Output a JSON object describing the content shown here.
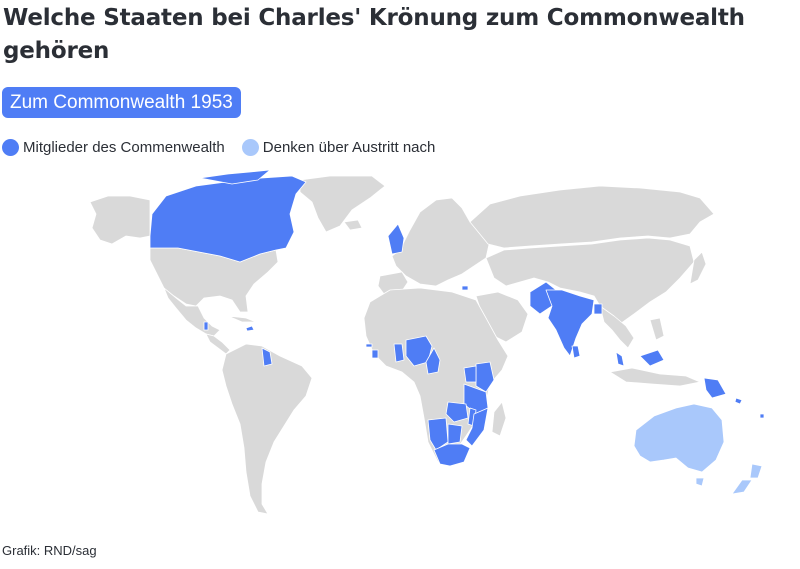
{
  "title": "Welche Staaten bei Charles' Krönung zum Commonwealth gehören",
  "tab": {
    "label": "Zum Commonwealth 1953"
  },
  "colors": {
    "member": "#4f7df5",
    "considering_exit": "#a9c8fb",
    "other": "#d9d9d9",
    "border": "#ffffff"
  },
  "legend": [
    {
      "label": "Mitglieder des Commenwealth",
      "color": "#4f7df5"
    },
    {
      "label": "Denken über Austritt nach",
      "color": "#a9c8fb"
    }
  ],
  "map": {
    "projection": "world",
    "members": [
      "Canada",
      "United Kingdom",
      "Jamaica",
      "Belize",
      "Guyana",
      "The Gambia",
      "Sierra Leone",
      "Ghana",
      "Nigeria",
      "Cameroon",
      "Uganda",
      "Kenya",
      "Tanzania",
      "Rwanda",
      "Malawi",
      "Zambia",
      "Mozambique",
      "Botswana",
      "Namibia",
      "South Africa",
      "Eswatini",
      "Lesotho",
      "Cyprus",
      "Pakistan",
      "India",
      "Bangladesh",
      "Sri Lanka",
      "Malaysia",
      "Brunei",
      "Singapore",
      "Papua New Guinea",
      "Solomon Islands",
      "Fiji"
    ],
    "considering_exit": [
      "Australia",
      "New Zealand"
    ]
  },
  "source": "Grafik: RND/sag"
}
